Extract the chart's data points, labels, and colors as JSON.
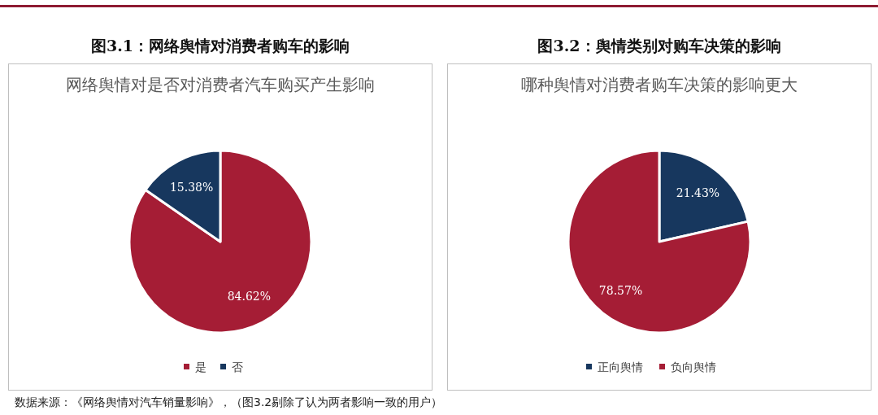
{
  "chart_data": [
    {
      "type": "pie",
      "title": "图3.1：网络舆情对消费者购车的影响",
      "subtitle": "网络舆情对是否对消费者汽车购买产生影响",
      "categories": [
        "是",
        "否"
      ],
      "values": [
        84.62,
        15.38
      ],
      "colors": [
        "#a51d35",
        "#17375e"
      ],
      "value_labels": [
        "84.62%",
        "15.38%"
      ],
      "legend": "bottom"
    },
    {
      "type": "pie",
      "title": "图3.2：舆情类别对购车决策的影响",
      "subtitle": "哪种舆情对消费者购车决策的影响更大",
      "categories": [
        "正向舆情",
        "负向舆情"
      ],
      "values": [
        21.43,
        78.57
      ],
      "colors": [
        "#17375e",
        "#a51d35"
      ],
      "value_labels": [
        "21.43%",
        "78.57%"
      ],
      "legend": "bottom",
      "annotations": [
        "数据来源：《网络舆情对汽车销量影响》，（图3.2剔除了认为两者影响一致的用户）"
      ]
    }
  ]
}
